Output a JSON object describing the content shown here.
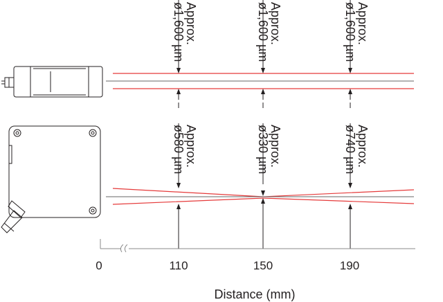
{
  "axis": {
    "label": "Distance (mm)",
    "ticks": [
      {
        "value": 0,
        "label": "0"
      },
      {
        "value": 110,
        "label": "110"
      },
      {
        "value": 150,
        "label": "150"
      },
      {
        "value": 190,
        "label": "190"
      }
    ]
  },
  "top_beam": {
    "annotations": [
      {
        "distance": 110,
        "line1": "Approx.",
        "line2": "ø1,600 µm"
      },
      {
        "distance": 150,
        "line1": "Approx.",
        "line2": "ø1,600 µm"
      },
      {
        "distance": 190,
        "line1": "Approx.",
        "line2": "ø1,600 µm"
      }
    ]
  },
  "bottom_beam": {
    "annotations": [
      {
        "distance": 110,
        "line1": "Approx.",
        "line2": "ø580 µm"
      },
      {
        "distance": 150,
        "line1": "Approx.",
        "line2": "ø330 µm"
      },
      {
        "distance": 190,
        "line1": "Approx.",
        "line2": "ø740 µm"
      }
    ]
  },
  "colors": {
    "beam": "#e53a3a",
    "line": "#231f20",
    "axis_line": "#888888"
  }
}
